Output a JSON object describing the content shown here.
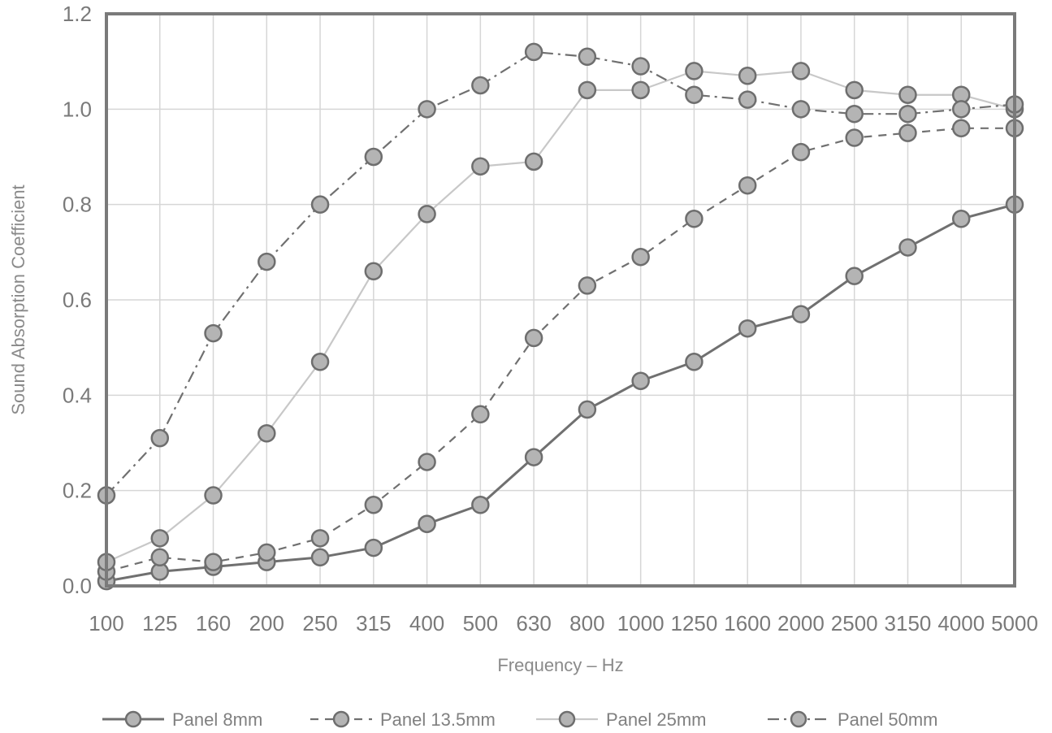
{
  "chart_data": {
    "type": "line",
    "xlabel": "Frequency – Hz",
    "ylabel": "Sound Absorption Coefficient",
    "categories": [
      "100",
      "125",
      "160",
      "200",
      "250",
      "315",
      "400",
      "500",
      "630",
      "800",
      "1000",
      "1250",
      "1600",
      "2000",
      "2500",
      "3150",
      "4000",
      "5000"
    ],
    "ylim": [
      0,
      1.2
    ],
    "yticks": [
      "0.0",
      "0.2",
      "0.4",
      "0.6",
      "0.8",
      "1.0",
      "1.2"
    ],
    "grid": true,
    "legend_position": "bottom",
    "series": [
      {
        "name": "Panel 8mm",
        "style": "solid",
        "color": "#707070",
        "values": [
          0.01,
          0.03,
          0.04,
          0.05,
          0.06,
          0.08,
          0.13,
          0.17,
          0.27,
          0.37,
          0.43,
          0.47,
          0.54,
          0.57,
          0.65,
          0.71,
          0.77,
          0.8
        ]
      },
      {
        "name": "Panel 13.5mm",
        "style": "dashed",
        "color": "#707070",
        "values": [
          0.03,
          0.06,
          0.05,
          0.07,
          0.1,
          0.17,
          0.26,
          0.36,
          0.52,
          0.63,
          0.69,
          0.77,
          0.84,
          0.91,
          0.94,
          0.95,
          0.96,
          0.96
        ]
      },
      {
        "name": "Panel 25mm",
        "style": "light",
        "color": "#c8c8c8",
        "values": [
          0.05,
          0.1,
          0.19,
          0.32,
          0.47,
          0.66,
          0.78,
          0.88,
          0.89,
          1.04,
          1.04,
          1.08,
          1.07,
          1.08,
          1.04,
          1.03,
          1.03,
          1.0
        ]
      },
      {
        "name": "Panel 50mm",
        "style": "dashdot",
        "color": "#707070",
        "values": [
          0.19,
          0.31,
          0.53,
          0.68,
          0.8,
          0.9,
          1.0,
          1.05,
          1.12,
          1.11,
          1.09,
          1.03,
          1.02,
          1.0,
          0.99,
          0.99,
          1.0,
          1.01
        ]
      }
    ]
  }
}
